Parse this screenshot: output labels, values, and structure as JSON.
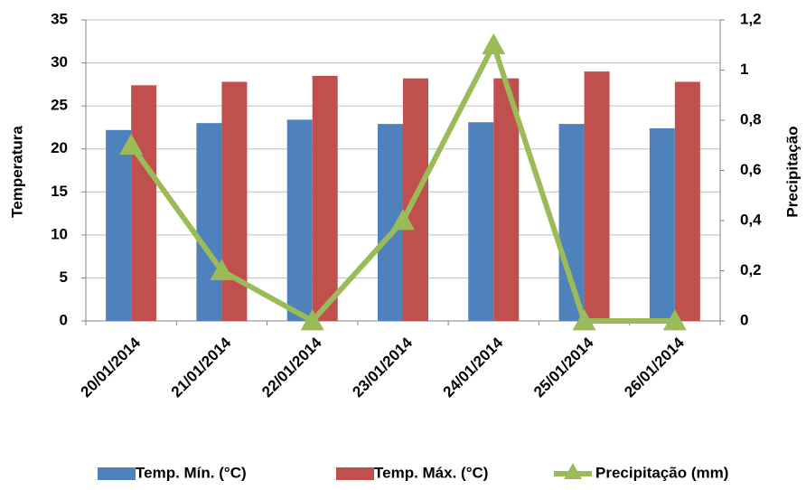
{
  "chart_data": {
    "type": "bar_line",
    "y_label": "Temperatura",
    "y2_label": "Precipitação",
    "categories": [
      "20/01/2014",
      "21/01/2014",
      "22/01/2014",
      "23/01/2014",
      "24/01/2014",
      "25/01/2014",
      "26/01/2014"
    ],
    "series": [
      {
        "name": "Temp. Mín. (°C)",
        "type": "bar",
        "color": "#4f81bd",
        "values": [
          22.2,
          23.0,
          23.4,
          22.9,
          23.1,
          22.9,
          22.4
        ]
      },
      {
        "name": "Temp. Máx. (°C)",
        "type": "bar",
        "color": "#c0504d",
        "values": [
          27.4,
          27.8,
          28.5,
          28.2,
          28.2,
          29.0,
          27.8
        ]
      },
      {
        "name": "Precipitação (mm)",
        "type": "line",
        "axis": "y2",
        "color": "#9bbb59",
        "values": [
          0.7,
          0.2,
          0,
          0.4,
          1.1,
          0,
          0
        ]
      }
    ],
    "ylim": [
      0,
      35
    ],
    "yticks": [
      0,
      5,
      10,
      15,
      20,
      25,
      30,
      35
    ],
    "y2lim": [
      0,
      1.2
    ],
    "y2ticks": [
      0,
      {
        "value": 0.2,
        "label": "0,2"
      },
      {
        "value": 0.4,
        "label": "0,4"
      },
      {
        "value": 0.6,
        "label": "0,6"
      },
      {
        "value": 0.8,
        "label": "0,8"
      },
      1,
      {
        "value": 1.2,
        "label": "1,2"
      }
    ],
    "grid": true,
    "legend": "bottom"
  }
}
